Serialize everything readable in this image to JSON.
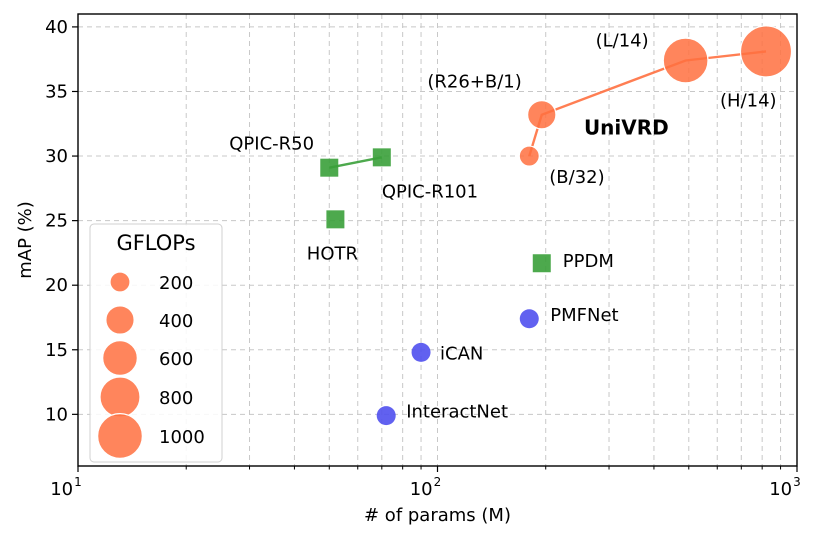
{
  "chart_data": {
    "type": "scatter",
    "xlabel": "# of params (M)",
    "ylabel": "mAP (%)",
    "xscale": "log",
    "xlim": [
      10,
      1000
    ],
    "ylim": [
      6,
      41
    ],
    "xticks": [
      {
        "base": "10",
        "exp": "1",
        "value": 10
      },
      {
        "base": "10",
        "exp": "2",
        "value": 100
      },
      {
        "base": "10",
        "exp": "3",
        "value": 1000
      }
    ],
    "yticks": [
      10,
      15,
      20,
      25,
      30,
      35,
      40
    ],
    "grid": true,
    "colors": {
      "univrd": "#ff7040",
      "qpic": "#3aa03a",
      "hoi": "#5050ee"
    },
    "series": [
      {
        "name": "UniVRD",
        "color": "#ff7040",
        "marker": "circle",
        "connected": true,
        "points": [
          {
            "label": "(B/32)",
            "x": 180,
            "y": 30.0,
            "gflops": 200
          },
          {
            "label": "(R26+B/1)",
            "x": 195,
            "y": 33.2,
            "gflops": 400
          },
          {
            "label": "(L/14)",
            "x": 490,
            "y": 37.4,
            "gflops": 1000
          },
          {
            "label": "(H/14)",
            "x": 820,
            "y": 38.1,
            "gflops": 1300
          }
        ]
      },
      {
        "color": "#3aa03a",
        "marker": "square",
        "connected": true,
        "points": [
          {
            "label": "QPIC-R50",
            "x": 50,
            "y": 29.1
          },
          {
            "label": "QPIC-R101",
            "x": 70,
            "y": 29.9
          }
        ]
      },
      {
        "color": "#3aa03a",
        "marker": "square",
        "connected": false,
        "points": [
          {
            "label": "HOTR",
            "x": 52,
            "y": 25.1
          },
          {
            "label": "PPDM",
            "x": 195,
            "y": 21.7
          }
        ]
      },
      {
        "color": "#5050ee",
        "marker": "circle",
        "connected": false,
        "points": [
          {
            "label": "iCAN",
            "x": 90,
            "y": 14.8
          },
          {
            "label": "PMFNet",
            "x": 180,
            "y": 17.4
          },
          {
            "label": "InteractNet",
            "x": 72,
            "y": 9.9
          }
        ]
      }
    ],
    "annotations": [
      {
        "text": "UniVRD",
        "x": 400,
        "y": 32.2
      }
    ],
    "legend": {
      "title": "GFLOPs",
      "position": "bottom-left",
      "entries": [
        {
          "label": "200",
          "gflops": 200
        },
        {
          "label": "400",
          "gflops": 400
        },
        {
          "label": "600",
          "gflops": 600
        },
        {
          "label": "800",
          "gflops": 800
        },
        {
          "label": "1000",
          "gflops": 1000
        }
      ]
    }
  }
}
